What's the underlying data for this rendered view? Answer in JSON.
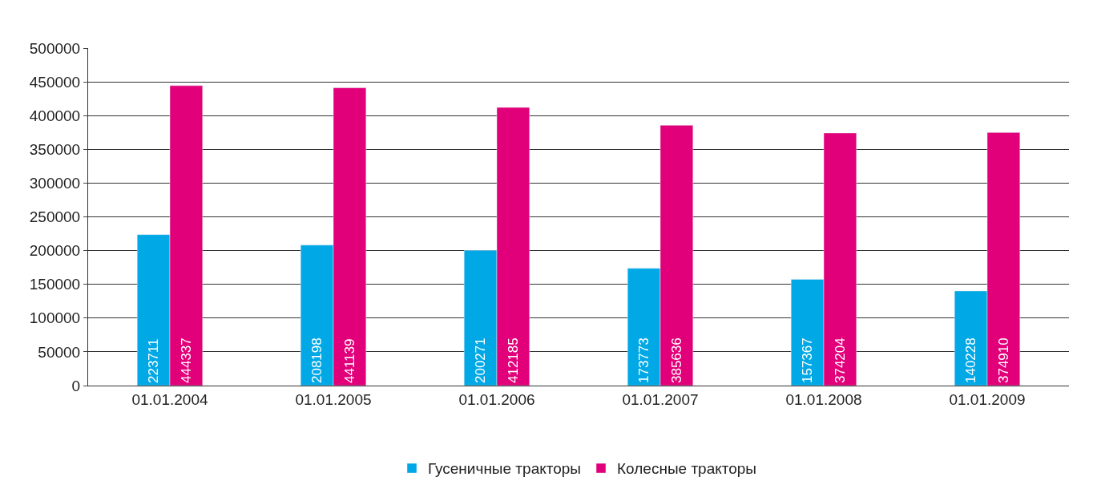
{
  "chart_data": {
    "type": "bar",
    "categories": [
      "01.01.2004",
      "01.01.2005",
      "01.01.2006",
      "01.01.2007",
      "01.01.2008",
      "01.01.2009"
    ],
    "series": [
      {
        "name": "Гусеничные тракторы",
        "color": "#00a8e6",
        "values": [
          223711,
          208198,
          200271,
          173773,
          157367,
          140228
        ]
      },
      {
        "name": "Колесные тракторы",
        "color": "#e2007a",
        "values": [
          444337,
          441139,
          412185,
          385636,
          374204,
          374910
        ]
      }
    ],
    "ylim": [
      0,
      500000
    ],
    "yticks": [
      0,
      50000,
      100000,
      150000,
      200000,
      250000,
      300000,
      350000,
      400000,
      450000,
      500000
    ],
    "grid": "y",
    "legend": "bottom",
    "data_labels": true
  }
}
